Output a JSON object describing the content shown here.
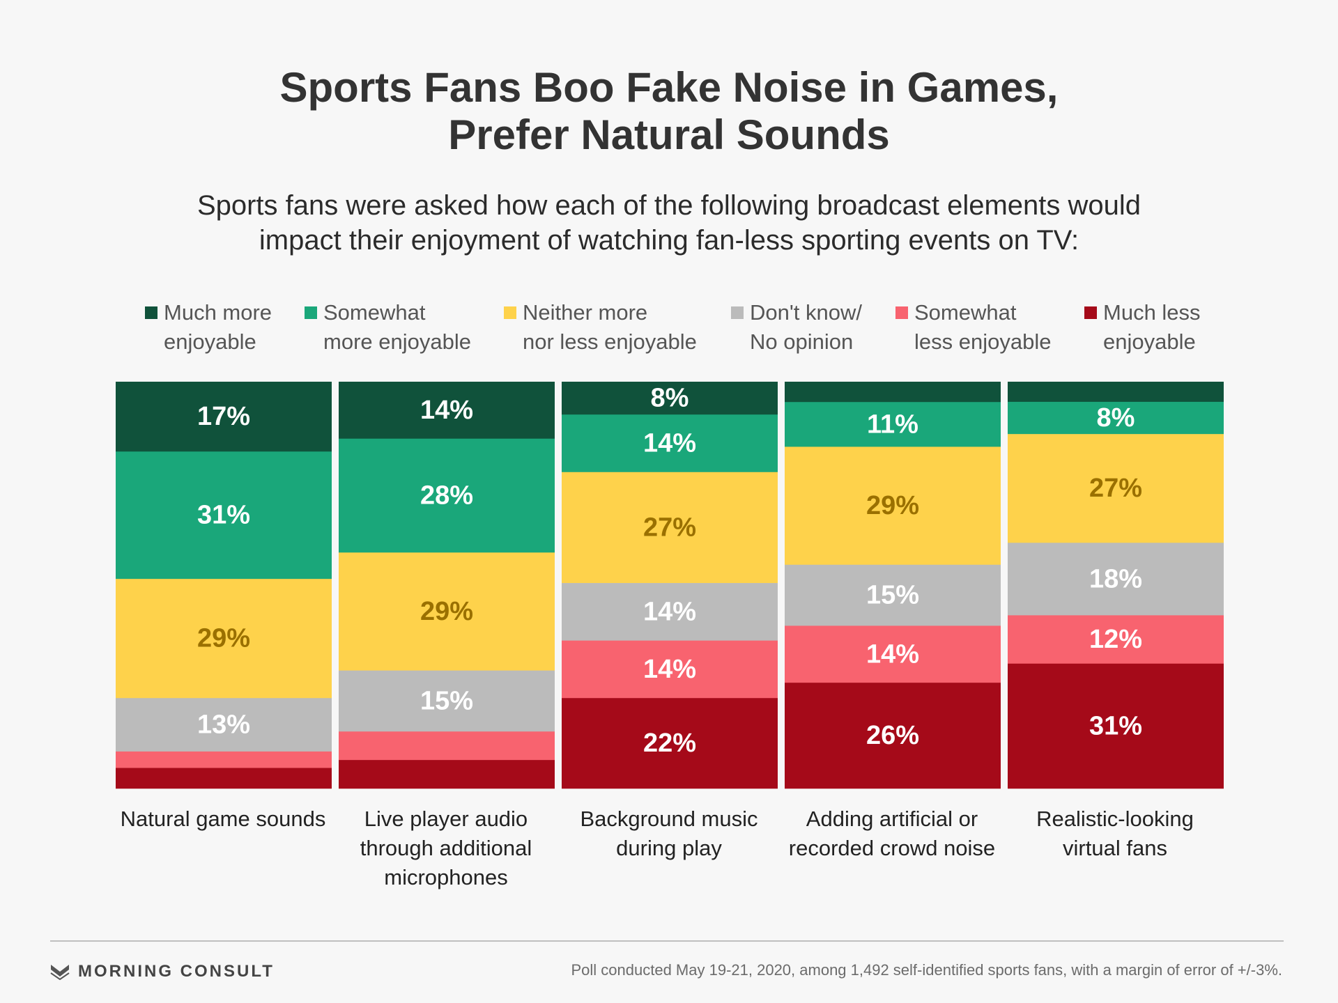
{
  "title_lines": [
    "Sports Fans Boo Fake Noise in Games,",
    "Prefer Natural Sounds"
  ],
  "subtitle_lines": [
    "Sports fans were asked how each of the following broadcast elements would",
    "impact their enjoyment of watching fan-less sporting events on TV:"
  ],
  "legend": [
    {
      "lines": [
        "Much more",
        "enjoyable"
      ],
      "color": "#10523b"
    },
    {
      "lines": [
        "Somewhat",
        "more enjoyable"
      ],
      "color": "#1aa77a"
    },
    {
      "lines": [
        "Neither more",
        "nor less enjoyable"
      ],
      "color": "#fed24b"
    },
    {
      "lines": [
        "Don't know/",
        "No opinion"
      ],
      "color": "#bbbbbb"
    },
    {
      "lines": [
        "Somewhat",
        "less enjoyable"
      ],
      "color": "#f8636f"
    },
    {
      "lines": [
        "Much less",
        "enjoyable"
      ],
      "color": "#a50a19"
    }
  ],
  "chart_data": {
    "type": "bar",
    "stacked": true,
    "normalized_percent": true,
    "categories": [
      [
        "Natural game sounds"
      ],
      [
        "Live player audio",
        "through additional",
        "microphones"
      ],
      [
        "Background music",
        "during play"
      ],
      [
        "Adding artificial or",
        "recorded crowd noise"
      ],
      [
        "Realistic-looking",
        "virtual fans"
      ]
    ],
    "series": [
      {
        "name": "Much more enjoyable",
        "values": [
          17,
          14,
          8,
          5,
          5
        ],
        "labels": [
          "17%",
          "14%",
          "8%",
          "",
          ""
        ]
      },
      {
        "name": "Somewhat more enjoyable",
        "values": [
          31,
          28,
          14,
          11,
          8
        ],
        "labels": [
          "31%",
          "28%",
          "14%",
          "11%",
          "8%"
        ]
      },
      {
        "name": "Neither more nor less enjoyable",
        "values": [
          29,
          29,
          27,
          29,
          27
        ],
        "labels": [
          "29%",
          "29%",
          "27%",
          "29%",
          "27%"
        ]
      },
      {
        "name": "Don't know/No opinion",
        "values": [
          13,
          15,
          14,
          15,
          18
        ],
        "labels": [
          "13%",
          "15%",
          "14%",
          "15%",
          "18%"
        ]
      },
      {
        "name": "Somewhat less enjoyable",
        "values": [
          4,
          7,
          14,
          14,
          12
        ],
        "labels": [
          "",
          "",
          "14%",
          "14%",
          "12%"
        ]
      },
      {
        "name": "Much less enjoyable",
        "values": [
          5,
          7,
          22,
          26,
          31
        ],
        "labels": [
          "",
          "",
          "22%",
          "26%",
          "31%"
        ]
      }
    ],
    "label_colors": [
      "#ffffff",
      "#ffffff",
      "#9a7000",
      "#ffffff",
      "#ffffff",
      "#ffffff"
    ],
    "ylim": [
      0,
      100
    ]
  },
  "footer": {
    "brand": "MORNING CONSULT",
    "brand_color": "#555555",
    "note": "Poll conducted May 19-21, 2020, among 1,492 self-identified sports fans, with a margin of error of +/-3%."
  }
}
